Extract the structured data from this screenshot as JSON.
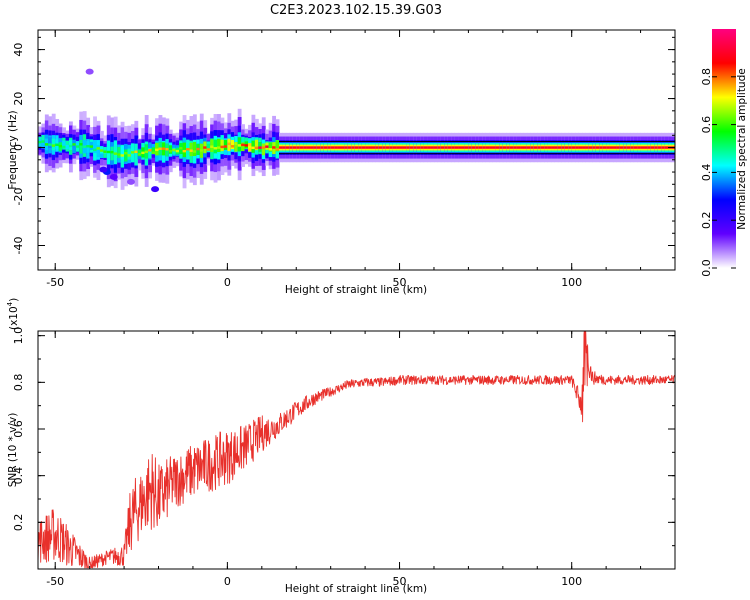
{
  "title": "C2E3.2023.102.15.39.G03",
  "chart_data": [
    {
      "type": "heatmap",
      "xlabel": "Height of straight line (km)",
      "ylabel": "Frequency (Hz)",
      "xlim": [
        -55,
        130
      ],
      "ylim": [
        -50,
        48
      ],
      "x_ticks": [
        -50,
        0,
        50,
        100
      ],
      "y_ticks": [
        -40,
        -20,
        0,
        20,
        40
      ],
      "x_tick_labels": [
        "-50",
        "0",
        "50",
        "100"
      ],
      "y_tick_labels": [
        "-40",
        "-20",
        "0",
        "20",
        "40"
      ],
      "colorbar": {
        "label": "Normalized spectral amplitude",
        "range": [
          0,
          1
        ],
        "ticks": [
          0.0,
          0.2,
          0.4,
          0.6,
          0.8
        ],
        "tick_labels": [
          "0.0",
          "0.2",
          "0.4",
          "0.6",
          "0.8"
        ],
        "colors": [
          "#ffffff",
          "#6000ff",
          "#0000ff",
          "#00ffff",
          "#00ff00",
          "#ffff00",
          "#ff0000",
          "#ff0080"
        ]
      },
      "ridge": {
        "x": [
          -55,
          -50,
          -45,
          -40,
          -35,
          -30,
          -25,
          -20,
          -15,
          -10,
          -5,
          0,
          5,
          10,
          15,
          50,
          100,
          130
        ],
        "frequency": [
          2,
          1,
          1,
          0,
          -2,
          -3,
          -2,
          -1,
          -1,
          -1,
          0,
          1,
          1,
          0,
          0,
          0,
          0,
          0
        ],
        "amplitude": [
          0.5,
          0.6,
          0.55,
          0.6,
          0.55,
          0.65,
          0.7,
          0.75,
          0.7,
          0.72,
          0.8,
          0.82,
          0.85,
          0.85,
          0.9,
          0.9,
          0.9,
          0.9
        ]
      },
      "scatter_blobs": {
        "x": [
          -40,
          -35,
          -33,
          -21,
          -36,
          -28
        ],
        "frequency": [
          31,
          -10,
          -12,
          -17,
          -9,
          -14
        ],
        "amplitude": [
          0.1,
          0.3,
          0.15,
          0.2,
          0.2,
          0.1
        ]
      }
    },
    {
      "type": "line",
      "xlabel": "Height of straight line (km)",
      "ylabel": "SNR (10 * v/v)",
      "y_multiplier_label": "(x10",
      "y_multiplier_exp": "4",
      "y_multiplier_close": ")",
      "xlim": [
        -55,
        130
      ],
      "ylim": [
        0,
        1.02
      ],
      "x_ticks": [
        -50,
        0,
        50,
        100
      ],
      "y_ticks": [
        0.2,
        0.4,
        0.6,
        0.8,
        1.0
      ],
      "x_tick_labels": [
        "-50",
        "0",
        "50",
        "100"
      ],
      "y_tick_labels": [
        "0.2",
        "0.4",
        "0.6",
        "0.8",
        "1.0"
      ],
      "line_color": "#e8302b",
      "series": [
        {
          "x": [
            -55,
            -50,
            -45,
            -40,
            -35,
            -30,
            -28,
            -25,
            -22,
            -20,
            -15,
            -10,
            -5,
            0,
            5,
            10,
            15,
            20,
            25,
            30,
            35,
            40,
            45,
            50,
            60,
            70,
            80,
            90,
            100,
            103,
            104,
            106,
            110,
            120,
            130
          ],
          "values": [
            0.12,
            0.15,
            0.08,
            0.02,
            0.05,
            0.06,
            0.22,
            0.28,
            0.35,
            0.3,
            0.38,
            0.42,
            0.45,
            0.48,
            0.52,
            0.58,
            0.62,
            0.68,
            0.73,
            0.76,
            0.79,
            0.8,
            0.8,
            0.81,
            0.81,
            0.81,
            0.81,
            0.81,
            0.81,
            0.7,
            0.95,
            0.82,
            0.81,
            0.81,
            0.81
          ],
          "noise": [
            0.1,
            0.12,
            0.08,
            0.03,
            0.03,
            0.05,
            0.15,
            0.15,
            0.18,
            0.15,
            0.12,
            0.12,
            0.12,
            0.12,
            0.1,
            0.08,
            0.05,
            0.04,
            0.03,
            0.02,
            0.02,
            0.02,
            0.02,
            0.02,
            0.02,
            0.02,
            0.02,
            0.02,
            0.02,
            0.06,
            0.1,
            0.03,
            0.02,
            0.02,
            0.02
          ]
        }
      ]
    }
  ]
}
